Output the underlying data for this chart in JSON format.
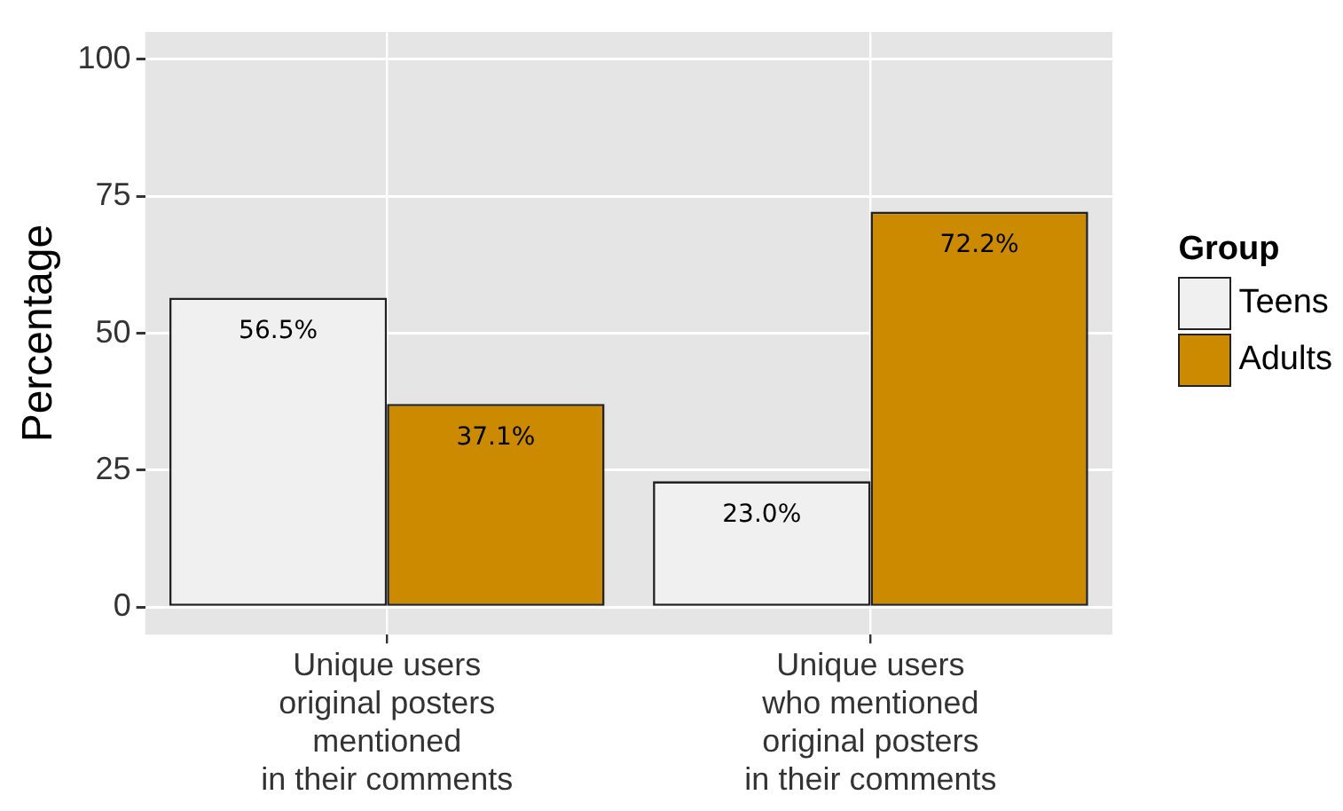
{
  "chart_data": {
    "type": "bar",
    "ylabel": "Percentage",
    "legend_title": "Group",
    "categories": [
      "Unique users\noriginal posters\nmentioned\nin their comments",
      "Unique users\nwho mentioned\noriginal posters\nin their comments"
    ],
    "series": [
      {
        "name": "Teens",
        "color": "#f0f0f0",
        "values": [
          56.5,
          23.0
        ],
        "value_labels": [
          "56.5%",
          "23.0%"
        ]
      },
      {
        "name": "Adults",
        "color": "#cc8a00",
        "values": [
          37.1,
          72.2
        ],
        "value_labels": [
          "37.1%",
          "72.2%"
        ]
      }
    ],
    "ylim": [
      -5,
      105
    ],
    "yticks": [
      0,
      25,
      50,
      75,
      100
    ],
    "grid": true,
    "legend": "right"
  }
}
